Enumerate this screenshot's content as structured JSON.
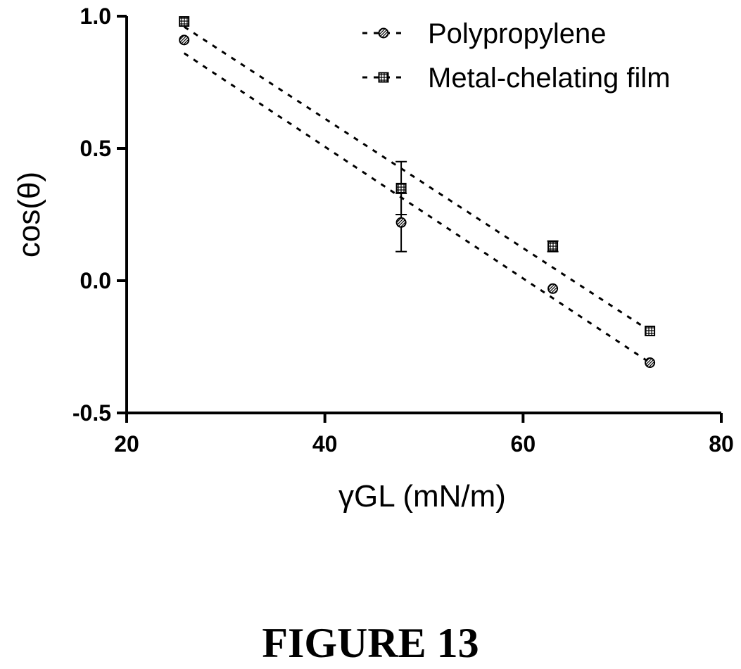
{
  "caption": "FIGURE 13",
  "chart_data": {
    "type": "scatter",
    "xlabel": "γGL (mN/m)",
    "ylabel": "cos(θ)",
    "xlim": [
      20,
      80
    ],
    "ylim": [
      -0.5,
      1.0
    ],
    "xticks": [
      "20",
      "40",
      "60",
      "80"
    ],
    "yticks": [
      "-0.5",
      "0.0",
      "0.5",
      "1.0"
    ],
    "grid": false,
    "legend_position": "top-right",
    "series": [
      {
        "name": "Polypropylene",
        "marker": "circle-hatched",
        "points": [
          {
            "x": 25.8,
            "y": 0.91,
            "err": 0
          },
          {
            "x": 47.7,
            "y": 0.22,
            "err": 0.11
          },
          {
            "x": 63.0,
            "y": -0.03,
            "err": 0
          },
          {
            "x": 72.8,
            "y": -0.31,
            "err": 0
          }
        ],
        "fit": {
          "x": [
            25.8,
            72.8
          ],
          "y": [
            0.86,
            -0.31
          ]
        }
      },
      {
        "name": "Metal-chelating film",
        "marker": "square-hatched",
        "points": [
          {
            "x": 25.8,
            "y": 0.98,
            "err": 0
          },
          {
            "x": 47.7,
            "y": 0.35,
            "err": 0.1
          },
          {
            "x": 63.0,
            "y": 0.13,
            "err": 0.02
          },
          {
            "x": 72.8,
            "y": -0.19,
            "err": 0
          }
        ],
        "fit": {
          "x": [
            25.8,
            72.8
          ],
          "y": [
            0.96,
            -0.19
          ]
        }
      }
    ]
  }
}
